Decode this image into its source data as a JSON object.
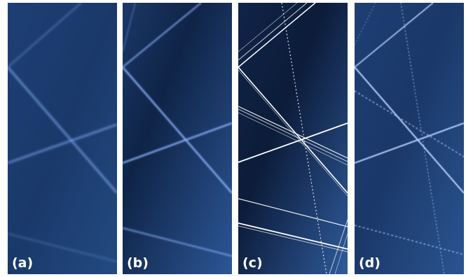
{
  "panels": [
    {
      "label": "(a)",
      "variant": "diffuse"
    },
    {
      "label": "(b)",
      "variant": "sharper"
    },
    {
      "label": "(c)",
      "variant": "sharp-lines"
    },
    {
      "label": "(d)",
      "variant": "dotted-lines"
    }
  ],
  "colors": {
    "background_bright": "#284e88",
    "background_dark": "#0d1d3a",
    "line": "#8fb4ff",
    "line_bright": "#ffffff"
  }
}
